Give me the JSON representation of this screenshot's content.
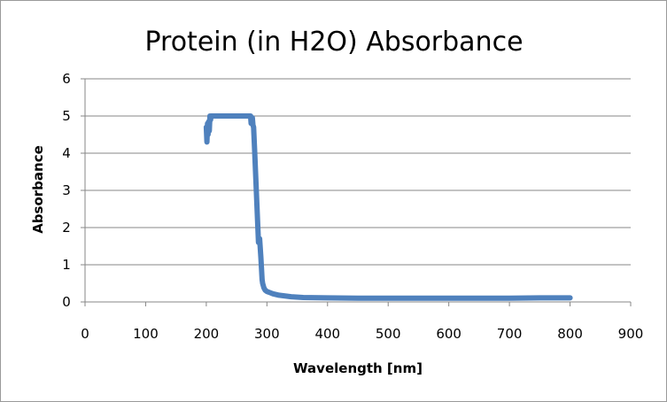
{
  "chart_data": {
    "type": "line",
    "title": "Protein (in H2O) Absorbance",
    "xlabel": "Wavelength [nm]",
    "ylabel": "Absorbance",
    "xlim": [
      0,
      900
    ],
    "ylim": [
      0,
      6
    ],
    "x_ticks": [
      "0",
      "100",
      "200",
      "300",
      "400",
      "500",
      "600",
      "700",
      "800",
      "900"
    ],
    "y_ticks": [
      "0",
      "1",
      "2",
      "3",
      "4",
      "5",
      "6"
    ],
    "grid": "horizontal",
    "legend": "none",
    "series": [
      {
        "name": "Absorbance",
        "color": "#4F81BD",
        "x": [
          200,
          201,
          202,
          203,
          204,
          205,
          206,
          207,
          208,
          210,
          220,
          240,
          260,
          270,
          273,
          274,
          276,
          277,
          278,
          280,
          282,
          284,
          286,
          288,
          290,
          292,
          293,
          295,
          297,
          300,
          305,
          310,
          320,
          340,
          360,
          400,
          450,
          500,
          600,
          700,
          750,
          800
        ],
        "values": [
          4.7,
          4.3,
          4.8,
          4.5,
          4.85,
          4.6,
          5.0,
          4.9,
          5.0,
          5.0,
          5.0,
          5.0,
          5.0,
          5.0,
          5.0,
          4.8,
          4.95,
          4.75,
          4.7,
          4.0,
          3.2,
          2.4,
          1.6,
          1.7,
          1.2,
          0.6,
          0.5,
          0.38,
          0.32,
          0.28,
          0.25,
          0.22,
          0.18,
          0.14,
          0.12,
          0.11,
          0.1,
          0.1,
          0.1,
          0.1,
          0.11,
          0.11
        ]
      }
    ]
  }
}
